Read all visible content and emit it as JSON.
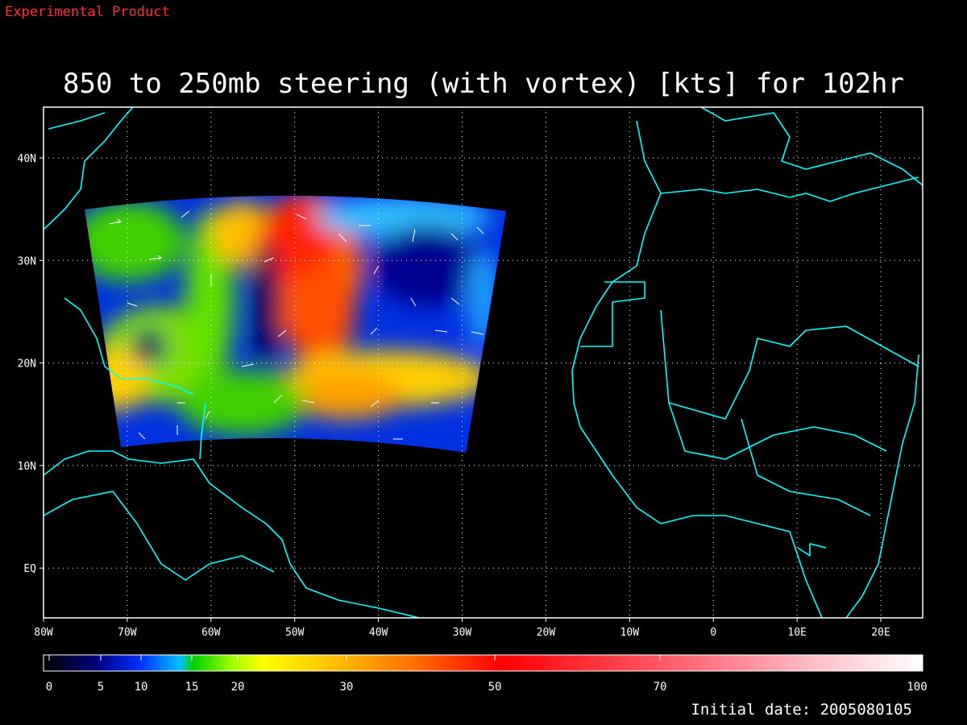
{
  "header": {
    "note": "Experimental Product"
  },
  "title": "850 to 250mb steering (with vortex) [kts] for 102hr",
  "map": {
    "x_ticks": [
      "80W",
      "70W",
      "60W",
      "50W",
      "40W",
      "30W",
      "20W",
      "10W",
      "0",
      "10E",
      "20E"
    ],
    "y_ticks": [
      "40N",
      "30N",
      "20N",
      "10N",
      "EQ"
    ]
  },
  "colorbar": {
    "ticks": [
      0,
      5,
      10,
      15,
      20,
      30,
      50,
      70,
      100
    ]
  },
  "footer": {
    "initial_date": "Initial date: 2005080105"
  }
}
